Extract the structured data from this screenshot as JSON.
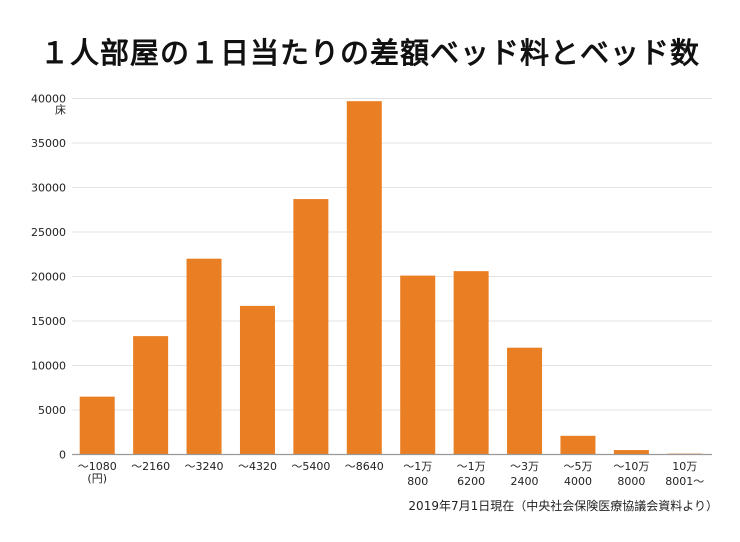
{
  "chart_data": {
    "type": "bar",
    "title": "１人部屋の１日当たりの差額ベッド料とベッド数",
    "ylabel": "床",
    "xunit": "(円)",
    "categories": [
      [
        "〜1080"
      ],
      [
        "〜2160"
      ],
      [
        "〜3240"
      ],
      [
        "〜4320"
      ],
      [
        "〜5400"
      ],
      [
        "〜8640"
      ],
      [
        "〜1万",
        "800"
      ],
      [
        "〜1万",
        "6200"
      ],
      [
        "〜3万",
        "2400"
      ],
      [
        "〜5万",
        "4000"
      ],
      [
        "〜10万",
        "8000"
      ],
      [
        "10万",
        "8001〜"
      ]
    ],
    "values": [
      6500,
      13300,
      22000,
      16700,
      28700,
      39700,
      20100,
      20600,
      12000,
      2100,
      500,
      100
    ],
    "ylim": [
      0,
      40000
    ],
    "yticks": [
      0,
      5000,
      10000,
      15000,
      20000,
      25000,
      30000,
      35000,
      40000
    ],
    "grid": true,
    "bar_color": "#E97E22",
    "source": "2019年7月1日現在（中央社会保険医療協議会資料より）"
  }
}
